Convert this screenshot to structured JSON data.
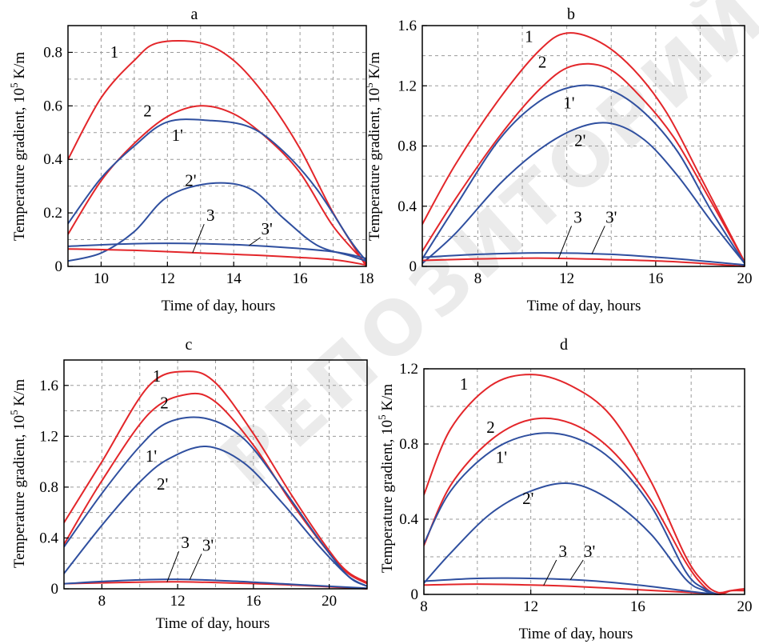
{
  "watermark": "РЕПОЗИТОРИЙ",
  "colors": {
    "red": "#e3262a",
    "blue": "#2f4f9f",
    "grid": "#9a9a9a",
    "axis": "#000000"
  },
  "chart_data": [
    {
      "type": "line",
      "title": "a",
      "xlabel": "Time of day, hours",
      "ylabel": "Temperature gradient, 10^5 K/m",
      "xlim": [
        9,
        18
      ],
      "ylim": [
        0,
        0.9
      ],
      "xticks": [
        10,
        12,
        14,
        16,
        18
      ],
      "yticks": [
        0,
        0.2,
        0.4,
        0.6,
        0.8
      ],
      "ytick_labels": [
        "0",
        "0.2",
        "0.4",
        "0.6",
        "0.8"
      ],
      "series": [
        {
          "name": "1",
          "color": "red",
          "x": [
            9,
            10,
            11,
            11.7,
            13,
            14,
            15,
            16,
            17,
            18
          ],
          "y": [
            0.4,
            0.63,
            0.77,
            0.835,
            0.835,
            0.77,
            0.63,
            0.44,
            0.2,
            0.0
          ]
        },
        {
          "name": "2",
          "color": "red",
          "x": [
            9,
            10,
            11,
            12,
            13,
            14,
            15,
            16,
            17,
            18
          ],
          "y": [
            0.12,
            0.32,
            0.46,
            0.56,
            0.6,
            0.57,
            0.48,
            0.35,
            0.15,
            0.01
          ]
        },
        {
          "name": "1'",
          "color": "blue",
          "x": [
            9,
            10,
            11,
            12,
            13.3,
            14.5,
            15.5,
            16.5,
            17.5,
            18
          ],
          "y": [
            0.16,
            0.33,
            0.45,
            0.54,
            0.545,
            0.52,
            0.43,
            0.29,
            0.1,
            0.02
          ]
        },
        {
          "name": "2'",
          "color": "blue",
          "x": [
            9,
            10,
            11,
            12,
            13.3,
            14.5,
            15.5,
            16.5,
            17.5,
            18
          ],
          "y": [
            0.02,
            0.05,
            0.13,
            0.26,
            0.31,
            0.29,
            0.18,
            0.08,
            0.04,
            0.02
          ]
        },
        {
          "name": "3",
          "color": "red",
          "x": [
            9,
            11,
            13,
            15,
            17,
            18
          ],
          "y": [
            0.065,
            0.06,
            0.05,
            0.04,
            0.025,
            0.005
          ]
        },
        {
          "name": "3'",
          "color": "blue",
          "x": [
            9,
            11,
            13,
            15,
            17,
            18
          ],
          "y": [
            0.075,
            0.085,
            0.085,
            0.075,
            0.055,
            0.03
          ]
        }
      ],
      "labels": [
        {
          "text": "1",
          "x": 10.4,
          "y": 0.78
        },
        {
          "text": "2",
          "x": 11.4,
          "y": 0.56
        },
        {
          "text": "1'",
          "x": 12.3,
          "y": 0.47
        },
        {
          "text": "2'",
          "x": 12.7,
          "y": 0.3
        },
        {
          "text": "3",
          "x": 13.3,
          "y": 0.17
        },
        {
          "text": "3'",
          "x": 15.0,
          "y": 0.12
        }
      ]
    },
    {
      "type": "line",
      "title": "b",
      "xlabel": "Time of day, hours",
      "ylabel": "Temperature gradient, 10^5 K/m",
      "xlim": [
        5.5,
        20
      ],
      "ylim": [
        0,
        1.6
      ],
      "xticks": [
        8,
        12,
        16,
        20
      ],
      "yticks": [
        0,
        0.4,
        0.8,
        1.2,
        1.6
      ],
      "ytick_labels": [
        "0",
        "0.4",
        "0.8",
        "1.2",
        "1.6"
      ],
      "series": [
        {
          "name": "1",
          "color": "red",
          "x": [
            5.5,
            7,
            9,
            10.8,
            12,
            13.5,
            15,
            16.5,
            18,
            20
          ],
          "y": [
            0.28,
            0.68,
            1.12,
            1.44,
            1.55,
            1.49,
            1.31,
            1.02,
            0.6,
            0.03
          ]
        },
        {
          "name": "2",
          "color": "red",
          "x": [
            5.5,
            7,
            9,
            10.8,
            12.2,
            13.8,
            15.3,
            16.8,
            18.3,
            20
          ],
          "y": [
            0.1,
            0.45,
            0.87,
            1.18,
            1.33,
            1.32,
            1.13,
            0.86,
            0.48,
            0.03
          ]
        },
        {
          "name": "1'",
          "color": "blue",
          "x": [
            5.5,
            7,
            9,
            10.8,
            12.5,
            14,
            15.5,
            17,
            18.5,
            20
          ],
          "y": [
            0.05,
            0.4,
            0.85,
            1.1,
            1.2,
            1.17,
            1.02,
            0.76,
            0.37,
            0.02
          ]
        },
        {
          "name": "2'",
          "color": "blue",
          "x": [
            5.5,
            7,
            9,
            10.8,
            12.5,
            14,
            15.5,
            17,
            18.5,
            20
          ],
          "y": [
            0.02,
            0.22,
            0.55,
            0.78,
            0.92,
            0.95,
            0.84,
            0.6,
            0.3,
            0.02
          ]
        },
        {
          "name": "3",
          "color": "red",
          "x": [
            5.5,
            8,
            11,
            14,
            17,
            20
          ],
          "y": [
            0.04,
            0.05,
            0.055,
            0.045,
            0.03,
            0.0
          ]
        },
        {
          "name": "3'",
          "color": "blue",
          "x": [
            5.5,
            8,
            11,
            14,
            17,
            20
          ],
          "y": [
            0.06,
            0.08,
            0.09,
            0.08,
            0.05,
            0.01
          ]
        }
      ],
      "labels": [
        {
          "text": "1",
          "x": 10.3,
          "y": 1.49
        },
        {
          "text": "2",
          "x": 10.9,
          "y": 1.32
        },
        {
          "text": "1'",
          "x": 12.1,
          "y": 1.05
        },
        {
          "text": "2'",
          "x": 12.6,
          "y": 0.8
        },
        {
          "text": "3",
          "x": 12.5,
          "y": 0.29
        },
        {
          "text": "3'",
          "x": 14.0,
          "y": 0.29
        }
      ]
    },
    {
      "type": "line",
      "title": "c",
      "xlabel": "Time of day, hours",
      "ylabel": "Temperature gradient, 10^5 K/m",
      "xlim": [
        6,
        22
      ],
      "ylim": [
        0,
        1.8
      ],
      "xticks": [
        8,
        12,
        16,
        20
      ],
      "yticks": [
        0,
        0.4,
        0.8,
        1.2,
        1.6
      ],
      "ytick_labels": [
        "0",
        "0.4",
        "0.8",
        "1.2",
        "1.6"
      ],
      "series": [
        {
          "name": "1",
          "color": "red",
          "x": [
            6,
            8,
            10.5,
            12.5,
            14,
            16,
            18,
            20,
            21,
            22
          ],
          "y": [
            0.52,
            1.0,
            1.6,
            1.71,
            1.62,
            1.22,
            0.74,
            0.3,
            0.13,
            0.05
          ]
        },
        {
          "name": "2",
          "color": "red",
          "x": [
            6,
            8,
            10.5,
            12.5,
            14,
            16,
            18,
            20,
            21,
            22
          ],
          "y": [
            0.35,
            0.85,
            1.38,
            1.53,
            1.47,
            1.13,
            0.68,
            0.28,
            0.12,
            0.04
          ]
        },
        {
          "name": "1'",
          "color": "blue",
          "x": [
            6,
            8,
            10,
            11.5,
            13.5,
            15.5,
            17.5,
            19.5,
            21,
            22
          ],
          "y": [
            0.33,
            0.75,
            1.12,
            1.31,
            1.34,
            1.18,
            0.8,
            0.38,
            0.1,
            0.02
          ]
        },
        {
          "name": "2'",
          "color": "blue",
          "x": [
            6,
            8,
            10,
            11.5,
            13.5,
            15.5,
            17.5,
            19.5,
            21,
            22
          ],
          "y": [
            0.12,
            0.5,
            0.84,
            1.02,
            1.12,
            0.99,
            0.68,
            0.33,
            0.1,
            0.02
          ]
        },
        {
          "name": "3",
          "color": "red",
          "x": [
            6,
            9,
            12,
            15,
            18,
            22
          ],
          "y": [
            0.04,
            0.05,
            0.055,
            0.045,
            0.03,
            0.0
          ]
        },
        {
          "name": "3'",
          "color": "blue",
          "x": [
            6,
            9,
            12,
            15,
            18,
            22
          ],
          "y": [
            0.04,
            0.065,
            0.075,
            0.06,
            0.035,
            0.005
          ]
        }
      ],
      "labels": [
        {
          "text": "1",
          "x": 10.9,
          "y": 1.63
        },
        {
          "text": "2",
          "x": 11.3,
          "y": 1.42
        },
        {
          "text": "1'",
          "x": 10.6,
          "y": 1.0
        },
        {
          "text": "2'",
          "x": 11.2,
          "y": 0.78
        },
        {
          "text": "3",
          "x": 12.4,
          "y": 0.32
        },
        {
          "text": "3'",
          "x": 13.6,
          "y": 0.3
        }
      ]
    },
    {
      "type": "line",
      "title": "d",
      "xlabel": "Time of day, hours",
      "ylabel": "Temperature gradient, 10^5 K/m",
      "xlim": [
        8,
        20
      ],
      "ylim": [
        0,
        1.2
      ],
      "xticks": [
        8,
        12,
        16,
        20
      ],
      "yticks": [
        0,
        0.4,
        0.8,
        1.2
      ],
      "ytick_labels": [
        "0",
        "0.4",
        "0.8",
        "1.2"
      ],
      "series": [
        {
          "name": "1",
          "color": "red",
          "x": [
            8,
            9,
            10.5,
            12,
            13.5,
            15,
            16.5,
            17.8,
            18.5,
            19,
            19.5,
            20
          ],
          "y": [
            0.53,
            0.88,
            1.11,
            1.17,
            1.11,
            0.95,
            0.6,
            0.2,
            0.06,
            0.01,
            0.02,
            0.02
          ]
        },
        {
          "name": "2",
          "color": "red",
          "x": [
            8,
            9,
            10.5,
            12,
            13.5,
            15,
            16.5,
            17.8,
            18.5,
            19,
            19.5,
            20
          ],
          "y": [
            0.26,
            0.58,
            0.82,
            0.93,
            0.91,
            0.77,
            0.5,
            0.17,
            0.04,
            0.0,
            0.02,
            0.03
          ]
        },
        {
          "name": "1'",
          "color": "blue",
          "x": [
            8,
            9,
            10.5,
            12,
            13.5,
            15,
            16.5,
            17.8,
            18.5,
            19
          ],
          "y": [
            0.27,
            0.55,
            0.76,
            0.85,
            0.84,
            0.72,
            0.47,
            0.12,
            0.03,
            0.0
          ]
        },
        {
          "name": "2'",
          "color": "blue",
          "x": [
            8,
            9,
            10.5,
            12,
            13.5,
            15,
            16.5,
            17.8,
            18.5,
            19
          ],
          "y": [
            0.06,
            0.22,
            0.43,
            0.55,
            0.59,
            0.5,
            0.32,
            0.08,
            0.02,
            0.0
          ]
        },
        {
          "name": "3",
          "color": "red",
          "x": [
            8,
            10,
            12,
            14,
            16,
            18,
            19
          ],
          "y": [
            0.05,
            0.055,
            0.05,
            0.04,
            0.025,
            0.01,
            0.0
          ]
        },
        {
          "name": "3'",
          "color": "blue",
          "x": [
            8,
            10,
            12,
            14,
            16,
            18,
            19
          ],
          "y": [
            0.07,
            0.085,
            0.085,
            0.075,
            0.05,
            0.015,
            0.0
          ]
        }
      ],
      "labels": [
        {
          "text": "1",
          "x": 9.5,
          "y": 1.09
        },
        {
          "text": "2",
          "x": 10.5,
          "y": 0.86
        },
        {
          "text": "1'",
          "x": 10.9,
          "y": 0.7
        },
        {
          "text": "2'",
          "x": 11.9,
          "y": 0.48
        },
        {
          "text": "3",
          "x": 13.2,
          "y": 0.2
        },
        {
          "text": "3'",
          "x": 14.2,
          "y": 0.2
        }
      ]
    }
  ]
}
